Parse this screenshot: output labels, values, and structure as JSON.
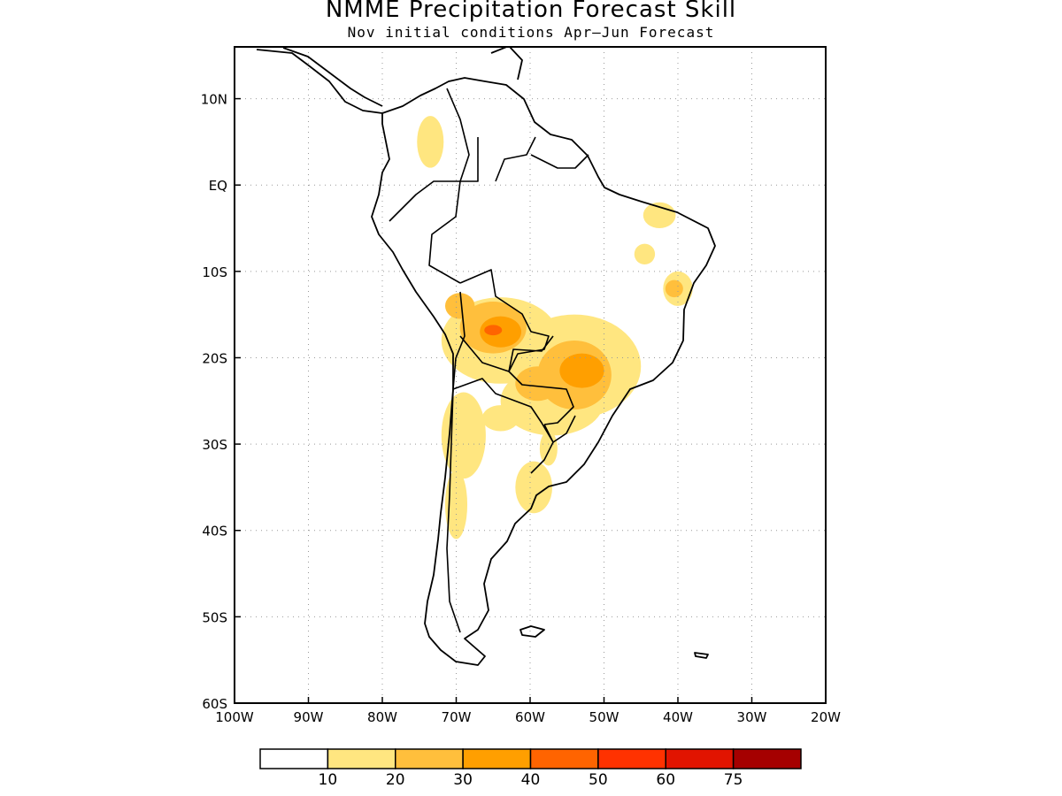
{
  "title": "NMME Precipitation Forecast Skill",
  "subtitle": "Nov initial conditions  Apr–Jun Forecast",
  "map": {
    "lon_range": [
      -100,
      -20
    ],
    "lat_range": [
      -60,
      16
    ],
    "lat_ticks": [
      {
        "value": 10,
        "label": "10N"
      },
      {
        "value": 0,
        "label": "EQ"
      },
      {
        "value": -10,
        "label": "10S"
      },
      {
        "value": -20,
        "label": "20S"
      },
      {
        "value": -30,
        "label": "30S"
      },
      {
        "value": -40,
        "label": "40S"
      },
      {
        "value": -50,
        "label": "50S"
      },
      {
        "value": -60,
        "label": "60S"
      }
    ],
    "lon_ticks": [
      {
        "value": -100,
        "label": "100W"
      },
      {
        "value": -90,
        "label": "90W"
      },
      {
        "value": -80,
        "label": "80W"
      },
      {
        "value": -70,
        "label": "70W"
      },
      {
        "value": -60,
        "label": "60W"
      },
      {
        "value": -50,
        "label": "50W"
      },
      {
        "value": -40,
        "label": "40W"
      },
      {
        "value": -30,
        "label": "30W"
      },
      {
        "value": -20,
        "label": "20W"
      }
    ],
    "grid": "dotted"
  },
  "colorbar": {
    "colors": [
      "#ffffff",
      "#ffe680",
      "#ffbf3c",
      "#ff9f00",
      "#ff6400",
      "#ff3200",
      "#e11400",
      "#a50000"
    ],
    "labels": [
      "10",
      "20",
      "30",
      "40",
      "50",
      "60",
      "75"
    ]
  },
  "skill_regions": [
    {
      "level": 1,
      "color": "#ffe680",
      "lon": -64,
      "lat": -18,
      "rlon": 8,
      "rlat": 5
    },
    {
      "level": 1,
      "color": "#ffe680",
      "lon": -54,
      "lat": -21,
      "rlon": 9,
      "rlat": 6
    },
    {
      "level": 1,
      "color": "#ffe680",
      "lon": -57,
      "lat": -25,
      "rlon": 7,
      "rlat": 4
    },
    {
      "level": 1,
      "color": "#ffe680",
      "lon": -69,
      "lat": -29,
      "rlon": 3,
      "rlat": 5
    },
    {
      "level": 1,
      "color": "#ffe680",
      "lon": -70,
      "lat": -37,
      "rlon": 1.5,
      "rlat": 4
    },
    {
      "level": 1,
      "color": "#ffe680",
      "lon": -59.5,
      "lat": -35,
      "rlon": 2.5,
      "rlat": 3
    },
    {
      "level": 1,
      "color": "#ffe680",
      "lon": -73.5,
      "lat": 5,
      "rlon": 1.8,
      "rlat": 3
    },
    {
      "level": 1,
      "color": "#ffe680",
      "lon": -42.5,
      "lat": -3.5,
      "rlon": 2.2,
      "rlat": 1.5
    },
    {
      "level": 1,
      "color": "#ffe680",
      "lon": -40,
      "lat": -12,
      "rlon": 2,
      "rlat": 2
    },
    {
      "level": 1,
      "color": "#ffe680",
      "lon": -44.5,
      "lat": -8,
      "rlon": 1.4,
      "rlat": 1.2
    },
    {
      "level": 1,
      "color": "#ffe680",
      "lon": -64,
      "lat": -27,
      "rlon": 2.5,
      "rlat": 1.5
    },
    {
      "level": 1,
      "color": "#ffe680",
      "lon": -57.5,
      "lat": -30.5,
      "rlon": 1.2,
      "rlat": 2
    },
    {
      "level": 2,
      "color": "#ffbf3c",
      "lon": -65,
      "lat": -16.5,
      "rlon": 4.5,
      "rlat": 3
    },
    {
      "level": 2,
      "color": "#ffbf3c",
      "lon": -54,
      "lat": -22,
      "rlon": 5,
      "rlat": 4
    },
    {
      "level": 2,
      "color": "#ffbf3c",
      "lon": -59,
      "lat": -23,
      "rlon": 3,
      "rlat": 2
    },
    {
      "level": 2,
      "color": "#ffbf3c",
      "lon": -69.5,
      "lat": -14,
      "rlon": 2,
      "rlat": 1.5
    },
    {
      "level": 2,
      "color": "#ffbf3c",
      "lon": -40.5,
      "lat": -12,
      "rlon": 1.2,
      "rlat": 1
    },
    {
      "level": 3,
      "color": "#ff9f00",
      "lon": -64,
      "lat": -17,
      "rlon": 2.8,
      "rlat": 1.8
    },
    {
      "level": 3,
      "color": "#ff9f00",
      "lon": -53,
      "lat": -21.5,
      "rlon": 3,
      "rlat": 2
    },
    {
      "level": 4,
      "color": "#ff6400",
      "lon": -65,
      "lat": -16.8,
      "rlon": 1.2,
      "rlat": 0.6
    }
  ]
}
